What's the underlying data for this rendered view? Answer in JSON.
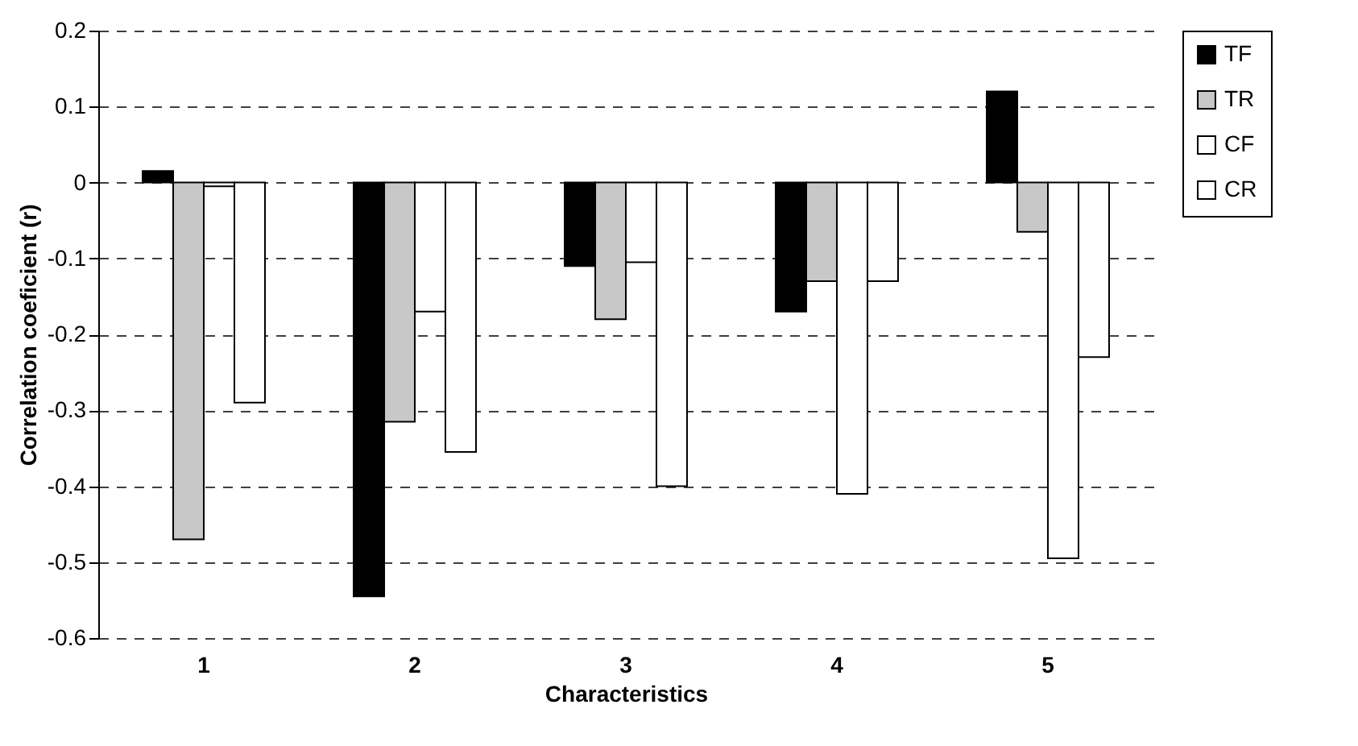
{
  "chart_data": {
    "type": "bar",
    "xlabel": "Characteristics",
    "ylabel": "Correlation coeficient (r)",
    "categories": [
      "1",
      "2",
      "3",
      "4",
      "5"
    ],
    "series": [
      {
        "name": "TF",
        "color": "#000000",
        "values": [
          0.015,
          -0.545,
          -0.11,
          -0.17,
          0.12
        ]
      },
      {
        "name": "TR",
        "color": "#c8c8c8",
        "values": [
          -0.47,
          -0.315,
          -0.18,
          -0.13,
          -0.065
        ]
      },
      {
        "name": "CF",
        "color": "#ffffff",
        "values": [
          -0.005,
          -0.17,
          -0.105,
          -0.41,
          -0.495
        ]
      },
      {
        "name": "CR",
        "color": "#ffffff",
        "values": [
          -0.29,
          -0.355,
          -0.4,
          -0.13,
          -0.23
        ]
      }
    ],
    "ylim": [
      -0.6,
      0.2
    ],
    "yticks": [
      -0.6,
      -0.5,
      -0.4,
      -0.3,
      -0.2,
      -0.1,
      0,
      0.1,
      0.2
    ],
    "grid": "y",
    "legend": "right"
  }
}
